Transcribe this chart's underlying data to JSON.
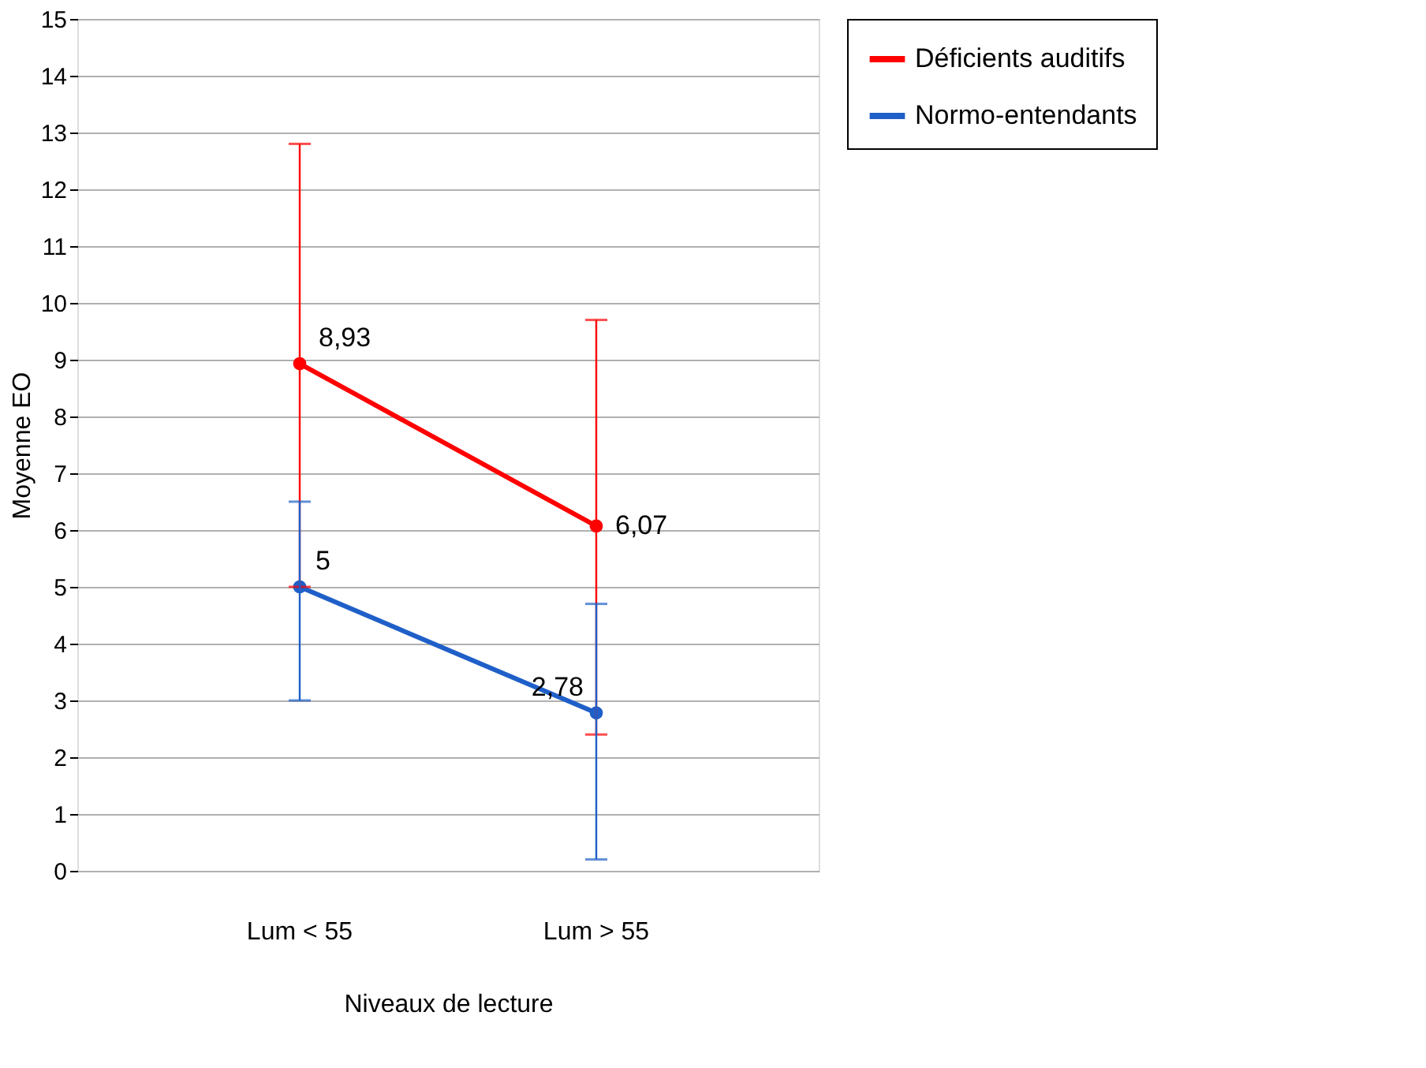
{
  "chart_data": {
    "type": "line",
    "xlabel": "Niveaux de lecture",
    "ylabel": "Moyenne EO",
    "categories": [
      "Lum < 55",
      "Lum > 55"
    ],
    "series": [
      {
        "name": "Déficients auditifs",
        "color": "#ff0000",
        "values": [
          8.93,
          6.07
        ],
        "errors": [
          [
            5.0,
            12.8
          ],
          [
            2.4,
            9.7
          ]
        ],
        "value_labels": [
          "8,93",
          "6,07"
        ]
      },
      {
        "name": "Normo-entendants",
        "color": "#1f5fc8",
        "values": [
          5,
          2.78
        ],
        "errors": [
          [
            3.0,
            6.5
          ],
          [
            0.2,
            4.7
          ]
        ],
        "value_labels": [
          "5",
          "2,78"
        ]
      }
    ],
    "ylim": [
      0,
      15
    ],
    "yticks": [
      0,
      1,
      2,
      3,
      4,
      5,
      6,
      7,
      8,
      9,
      10,
      11,
      12,
      13,
      14,
      15
    ],
    "grid": "y",
    "legend": "right",
    "marker": "circle",
    "line_style": "solid"
  }
}
